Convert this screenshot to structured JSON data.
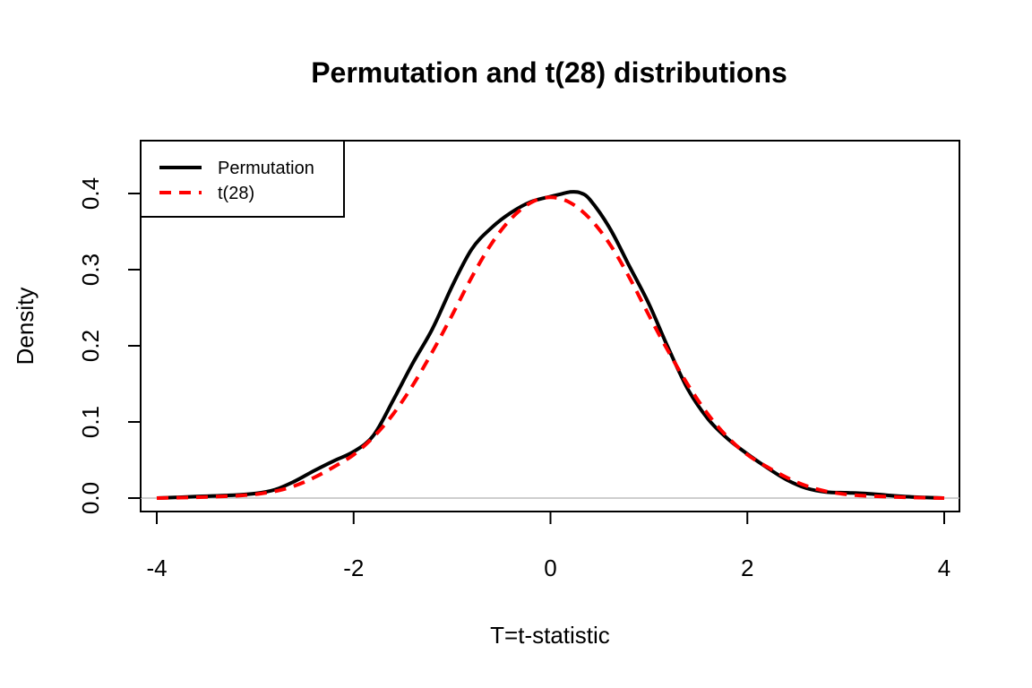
{
  "chart_data": {
    "type": "line",
    "title": "Permutation and t(28) distributions",
    "xlabel": "T=t-statistic",
    "ylabel": "Density",
    "xlim": [
      -4,
      4
    ],
    "ylim": [
      0,
      0.45
    ],
    "x_ticks": [
      "-4",
      "-2",
      "0",
      "2",
      "4"
    ],
    "y_ticks": [
      "0.0",
      "0.1",
      "0.2",
      "0.3",
      "0.4"
    ],
    "grid": false,
    "reference_line_y": 0,
    "legend": {
      "position": "top-left",
      "entries": [
        {
          "label": "Permutation",
          "color": "#000000",
          "style": "solid"
        },
        {
          "label": "t(28)",
          "color": "#ff0000",
          "style": "dashed"
        }
      ]
    },
    "series": [
      {
        "name": "Permutation",
        "color": "#000000",
        "style": "solid",
        "x": [
          -4.0,
          -3.6,
          -3.2,
          -3.0,
          -2.8,
          -2.6,
          -2.4,
          -2.2,
          -2.0,
          -1.8,
          -1.6,
          -1.4,
          -1.2,
          -1.0,
          -0.8,
          -0.6,
          -0.4,
          -0.2,
          0.0,
          0.1,
          0.2,
          0.3,
          0.4,
          0.6,
          0.8,
          1.0,
          1.2,
          1.4,
          1.6,
          1.8,
          2.0,
          2.2,
          2.4,
          2.6,
          2.8,
          3.0,
          3.2,
          3.4,
          3.6,
          4.0
        ],
        "y": [
          0.0,
          0.002,
          0.004,
          0.006,
          0.011,
          0.022,
          0.036,
          0.049,
          0.061,
          0.082,
          0.128,
          0.177,
          0.222,
          0.278,
          0.327,
          0.355,
          0.375,
          0.389,
          0.396,
          0.399,
          0.402,
          0.401,
          0.392,
          0.355,
          0.305,
          0.255,
          0.196,
          0.142,
          0.104,
          0.078,
          0.058,
          0.04,
          0.024,
          0.013,
          0.008,
          0.007,
          0.006,
          0.004,
          0.002,
          0.0
        ]
      },
      {
        "name": "t(28)",
        "color": "#ff0000",
        "style": "dashed",
        "x": [
          -4.0,
          -3.6,
          -3.2,
          -3.0,
          -2.8,
          -2.6,
          -2.4,
          -2.2,
          -2.0,
          -1.8,
          -1.6,
          -1.4,
          -1.2,
          -1.0,
          -0.8,
          -0.6,
          -0.4,
          -0.2,
          0.0,
          0.2,
          0.4,
          0.6,
          0.8,
          1.0,
          1.2,
          1.4,
          1.6,
          1.8,
          2.0,
          2.2,
          2.4,
          2.6,
          2.8,
          3.0,
          3.2,
          3.6,
          4.0
        ],
        "y": [
          0.0,
          0.001,
          0.003,
          0.005,
          0.009,
          0.016,
          0.027,
          0.041,
          0.057,
          0.08,
          0.11,
          0.148,
          0.192,
          0.24,
          0.29,
          0.334,
          0.367,
          0.388,
          0.395,
          0.388,
          0.367,
          0.334,
          0.29,
          0.24,
          0.192,
          0.148,
          0.11,
          0.08,
          0.057,
          0.041,
          0.027,
          0.016,
          0.009,
          0.005,
          0.003,
          0.001,
          0.0
        ]
      }
    ]
  }
}
